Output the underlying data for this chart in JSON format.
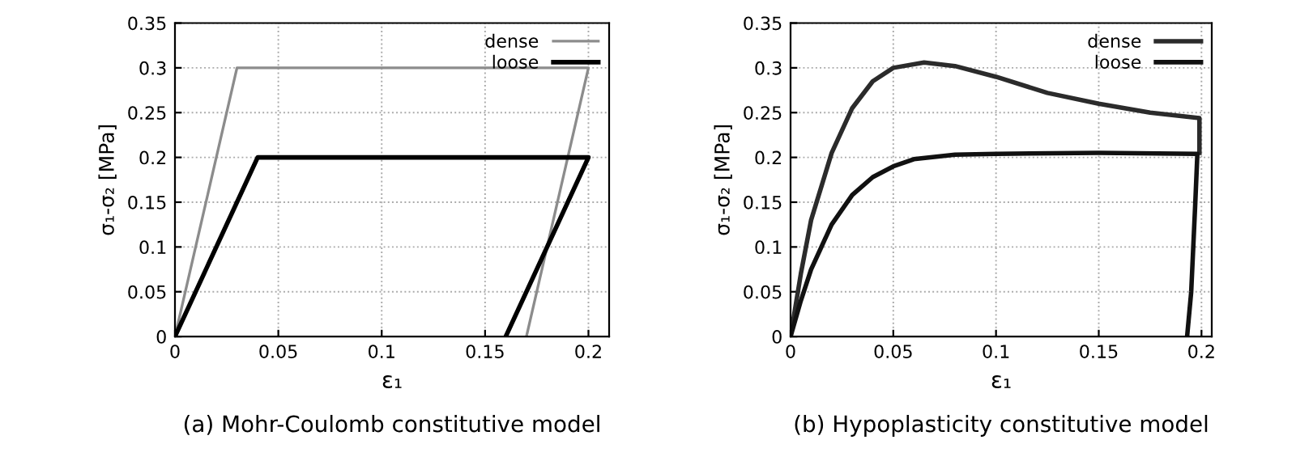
{
  "chart_data": [
    {
      "type": "line",
      "xlabel": "ε₁",
      "ylabel": "σ₁-σ₂ [MPa]",
      "annotations": [
        "(a) Mohr-Coulomb constitutive model"
      ],
      "xlim": [
        0,
        0.21
      ],
      "ylim": [
        0,
        0.35
      ],
      "xticks": [
        0,
        0.05,
        0.1,
        0.15,
        0.2
      ],
      "yticks": [
        0,
        0.05,
        0.1,
        0.15,
        0.2,
        0.25,
        0.3,
        0.35
      ],
      "grid": true,
      "legend": "top right",
      "line_style": "solid",
      "marker": "none",
      "series": [
        {
          "name": "dense",
          "color": "#8c8c8c",
          "x": [
            0,
            0.03,
            0.2,
            0.17
          ],
          "values": [
            0,
            0.3,
            0.3,
            0
          ]
        },
        {
          "name": "loose",
          "color": "#000000",
          "x": [
            0,
            0.04,
            0.2,
            0.16
          ],
          "values": [
            0,
            0.2,
            0.2,
            0
          ]
        }
      ]
    },
    {
      "type": "line",
      "xlabel": "ε₁",
      "ylabel": "σ₁-σ₂ [MPa]",
      "annotations": [
        "(b) Hypoplasticity constitutive model"
      ],
      "xlim": [
        0,
        0.205
      ],
      "ylim": [
        0,
        0.35
      ],
      "xticks": [
        0,
        0.05,
        0.1,
        0.15,
        0.2
      ],
      "yticks": [
        0,
        0.05,
        0.1,
        0.15,
        0.2,
        0.25,
        0.3,
        0.35
      ],
      "grid": true,
      "legend": "top right",
      "line_style": "solid",
      "marker": "none",
      "series": [
        {
          "name": "dense",
          "color": "#2b2b2b",
          "x": [
            0,
            0.005,
            0.01,
            0.02,
            0.03,
            0.04,
            0.05,
            0.065,
            0.08,
            0.1,
            0.125,
            0.15,
            0.175,
            0.199,
            0.199
          ],
          "values": [
            0,
            0.07,
            0.13,
            0.205,
            0.255,
            0.285,
            0.3,
            0.306,
            0.302,
            0.29,
            0.272,
            0.26,
            0.25,
            0.244,
            0.205
          ]
        },
        {
          "name": "loose",
          "color": "#111111",
          "x": [
            0,
            0.005,
            0.01,
            0.02,
            0.03,
            0.04,
            0.05,
            0.06,
            0.08,
            0.1,
            0.15,
            0.198,
            0.197,
            0.195,
            0.193
          ],
          "values": [
            0,
            0.04,
            0.075,
            0.125,
            0.158,
            0.178,
            0.19,
            0.198,
            0.203,
            0.204,
            0.205,
            0.204,
            0.15,
            0.05,
            0
          ]
        }
      ]
    }
  ]
}
